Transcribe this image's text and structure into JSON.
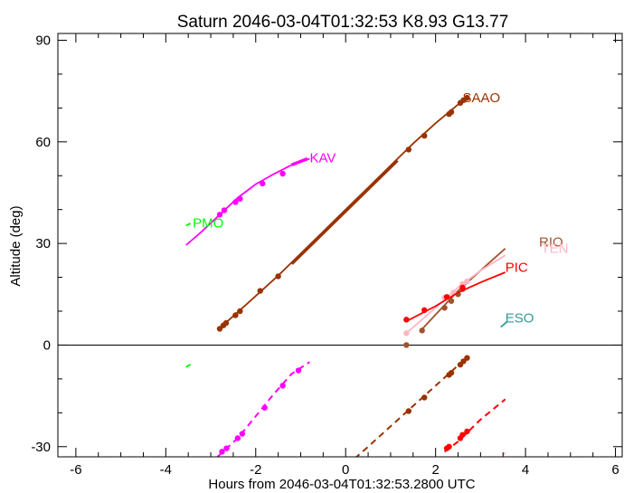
{
  "chart_data": {
    "type": "line",
    "title": "Saturn 2046-03-04T01:32:53  K8.93  G13.77",
    "xlabel": "Hours from 2046-03-04T01:32:53.2800 UTC",
    "ylabel": "Altitude (deg)",
    "xlim": [
      -6.4,
      6.15
    ],
    "ylim": [
      -33,
      92
    ],
    "x_ticks": [
      -6,
      -4,
      -2,
      0,
      2,
      4,
      6
    ],
    "y_ticks": [
      -30,
      0,
      30,
      60,
      90
    ],
    "x_tick_labels": [
      "-6",
      "-4",
      "-2",
      "0",
      "2",
      "4",
      "6"
    ],
    "y_tick_labels": [
      "-30",
      "0",
      "30",
      "60",
      "90"
    ],
    "zero_line": true,
    "grid": false,
    "series": [
      {
        "name": "KAV",
        "color": "#ff00ff",
        "label_pos": [
          -0.8,
          55.3
        ],
        "line": [
          [
            -3.55,
            29.5
          ],
          [
            -3.2,
            33.5
          ],
          [
            -2.8,
            38.5
          ],
          [
            -2.4,
            43.5
          ],
          [
            -2.0,
            47.5
          ],
          [
            -1.6,
            50.5
          ],
          [
            -1.2,
            53.2
          ],
          [
            -0.8,
            55.0
          ]
        ],
        "thick": [
          [
            -1.2,
            53.2
          ],
          [
            -0.85,
            55.0
          ]
        ],
        "points": [
          [
            -2.8,
            38.5
          ],
          [
            -2.7,
            39.8
          ],
          [
            -2.45,
            42.2
          ],
          [
            -2.35,
            43.2
          ],
          [
            -1.85,
            47.7
          ],
          [
            -1.4,
            50.6
          ]
        ],
        "below": [
          [
            -2.85,
            -33
          ],
          [
            -2.4,
            -27.5
          ],
          [
            -2.0,
            -21.0
          ],
          [
            -1.6,
            -14.5
          ],
          [
            -1.2,
            -8.5
          ],
          [
            -0.8,
            -5.0
          ]
        ],
        "below_points": [
          [
            -2.75,
            -31.5
          ],
          [
            -2.65,
            -30.5
          ],
          [
            -2.4,
            -27.5
          ],
          [
            -2.3,
            -26.2
          ],
          [
            -1.8,
            -18.5
          ],
          [
            -1.4,
            -12.0
          ],
          [
            -1.05,
            -7.5
          ]
        ]
      },
      {
        "name": "PMO",
        "color": "#00ff00",
        "label_pos": [
          -3.4,
          36.0
        ],
        "line": [
          [
            -3.55,
            35.3
          ],
          [
            -3.45,
            35.9
          ]
        ],
        "points": [],
        "below": [
          [
            -3.55,
            -6.5
          ],
          [
            -3.45,
            -5.7
          ]
        ],
        "below_points": []
      },
      {
        "name": "SAAO",
        "color": "#993300",
        "label_pos": [
          2.6,
          73.0
        ],
        "line": [
          [
            -2.85,
            4.5
          ],
          [
            -2.5,
            8.5
          ],
          [
            -2.0,
            14.5
          ],
          [
            -1.5,
            20.5
          ],
          [
            -1.0,
            27.0
          ],
          [
            -0.5,
            33.5
          ],
          [
            0.0,
            40.0
          ],
          [
            0.5,
            46.5
          ],
          [
            1.0,
            53.0
          ],
          [
            1.5,
            59.5
          ],
          [
            2.0,
            65.5
          ],
          [
            2.5,
            71.0
          ],
          [
            2.7,
            73.0
          ]
        ],
        "thick": [
          [
            -1.2,
            24.0
          ],
          [
            1.15,
            54.5
          ]
        ],
        "points": [
          [
            -2.8,
            4.8
          ],
          [
            -2.72,
            5.8
          ],
          [
            -2.66,
            6.5
          ],
          [
            -2.45,
            8.8
          ],
          [
            -2.35,
            10.0
          ],
          [
            -1.9,
            16.0
          ],
          [
            -1.5,
            20.3
          ],
          [
            1.4,
            57.7
          ],
          [
            1.75,
            61.8
          ],
          [
            2.3,
            68.2
          ],
          [
            2.35,
            68.8
          ],
          [
            2.55,
            71.5
          ],
          [
            2.62,
            72.3
          ],
          [
            2.7,
            73.0
          ]
        ],
        "below": [
          [
            0.2,
            -33.5
          ],
          [
            0.5,
            -30.0
          ],
          [
            1.0,
            -24.0
          ],
          [
            1.5,
            -18.0
          ],
          [
            2.0,
            -12.0
          ],
          [
            2.5,
            -6.0
          ],
          [
            2.75,
            -3.5
          ]
        ],
        "below_points": [
          [
            1.4,
            -19.5
          ],
          [
            1.75,
            -15.5
          ],
          [
            2.3,
            -8.8
          ],
          [
            2.35,
            -8.2
          ],
          [
            2.55,
            -5.8
          ],
          [
            2.62,
            -4.8
          ],
          [
            2.7,
            -3.8
          ]
        ]
      },
      {
        "name": "RIO",
        "color": "#a0522d",
        "label_pos": [
          4.3,
          30.5
        ],
        "line": [
          [
            1.65,
            4.0
          ],
          [
            2.0,
            9.0
          ],
          [
            2.5,
            16.0
          ],
          [
            3.0,
            22.0
          ],
          [
            3.55,
            28.5
          ]
        ],
        "points": [
          [
            1.35,
            0.0
          ],
          [
            1.7,
            4.3
          ],
          [
            2.2,
            11.0
          ],
          [
            2.35,
            13.0
          ],
          [
            2.5,
            15.0
          ],
          [
            2.6,
            16.5
          ]
        ],
        "below": [],
        "below_points": []
      },
      {
        "name": "TEN",
        "color": "#ffb6c1",
        "label_pos": [
          4.35,
          28.5
        ],
        "line": [
          [
            1.35,
            3.5
          ],
          [
            2.0,
            11.0
          ],
          [
            2.5,
            17.0
          ],
          [
            3.0,
            22.0
          ],
          [
            3.55,
            26.5
          ]
        ],
        "points": [
          [
            1.35,
            3.5
          ],
          [
            2.2,
            14.0
          ],
          [
            2.4,
            15.5
          ],
          [
            2.6,
            18.0
          ],
          [
            2.7,
            18.8
          ]
        ],
        "below": [
          [
            3.5,
            -32.5
          ],
          [
            3.55,
            -31.8
          ]
        ],
        "below_points": []
      },
      {
        "name": "PIC",
        "color": "#ff0000",
        "label_pos": [
          3.55,
          23.0
        ],
        "line": [
          [
            1.35,
            7.0
          ],
          [
            2.0,
            11.5
          ],
          [
            2.5,
            15.5
          ],
          [
            3.0,
            18.5
          ],
          [
            3.55,
            21.5
          ]
        ],
        "points": [
          [
            1.35,
            7.5
          ],
          [
            1.75,
            10.3
          ],
          [
            2.25,
            14.2
          ],
          [
            2.6,
            17.0
          ]
        ],
        "below": [
          [
            2.2,
            -31.5
          ],
          [
            2.5,
            -28.5
          ],
          [
            3.0,
            -22.0
          ],
          [
            3.55,
            -16.0
          ]
        ],
        "below_points": [
          [
            2.25,
            -30.5
          ],
          [
            2.3,
            -30.0
          ],
          [
            2.55,
            -27.5
          ],
          [
            2.6,
            -26.5
          ],
          [
            2.7,
            -25.5
          ]
        ]
      },
      {
        "name": "ESO",
        "color": "#339999",
        "label_pos": [
          3.55,
          8.0
        ],
        "line": [
          [
            3.45,
            5.3
          ],
          [
            3.6,
            7.0
          ]
        ],
        "points": [],
        "below": [],
        "below_points": []
      }
    ]
  }
}
